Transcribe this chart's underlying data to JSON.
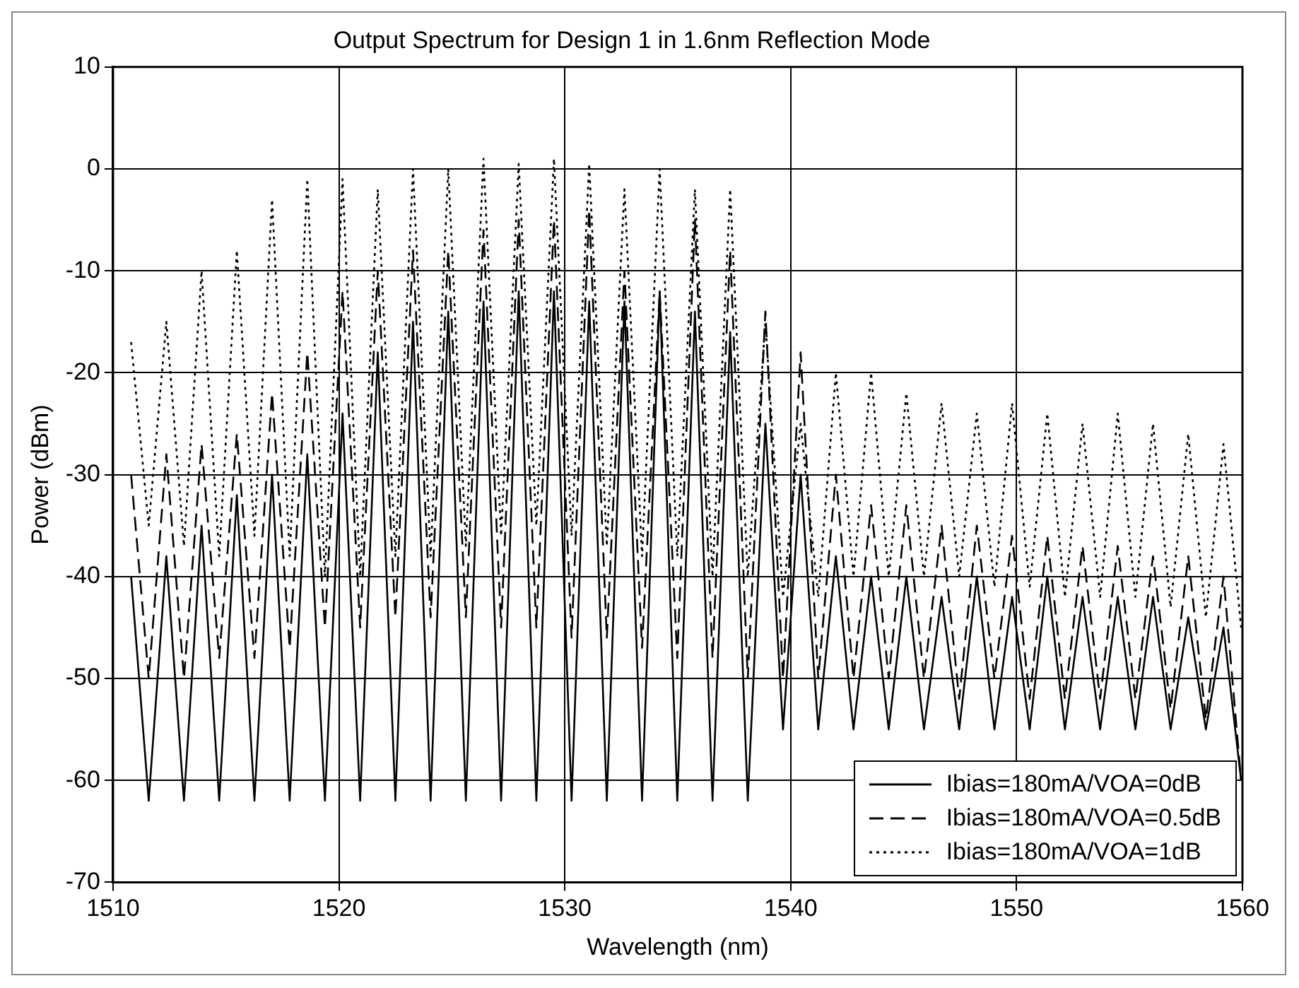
{
  "chart_data": {
    "type": "line",
    "title": "Output Spectrum for Design 1 in 1.6nm Reflection Mode",
    "xlabel": "Wavelength (nm)",
    "ylabel": "Power (dBm)",
    "x": [
      1510.8,
      1511.58,
      1512.36,
      1513.14,
      1513.92,
      1514.7,
      1515.48,
      1516.26,
      1517.04,
      1517.82,
      1518.6,
      1519.38,
      1520.16,
      1520.94,
      1521.72,
      1522.5,
      1523.28,
      1524.06,
      1524.84,
      1525.62,
      1526.4,
      1527.18,
      1527.96,
      1528.74,
      1529.52,
      1530.3,
      1531.08,
      1531.86,
      1532.64,
      1533.42,
      1534.2,
      1534.98,
      1535.76,
      1536.54,
      1537.32,
      1538.1,
      1538.88,
      1539.66,
      1540.44,
      1541.22,
      1542,
      1542.78,
      1543.56,
      1544.34,
      1545.12,
      1545.9,
      1546.68,
      1547.46,
      1548.24,
      1549.02,
      1549.8,
      1550.58,
      1551.36,
      1552.14,
      1552.92,
      1553.7,
      1554.48,
      1555.26,
      1556.04,
      1556.82,
      1557.6,
      1558.38,
      1559.16,
      1559.94
    ],
    "series": [
      {
        "name": "Ibias=180mA/VOA=0dB",
        "color": "#000000",
        "line_style": "solid",
        "values": [
          -40,
          -62,
          -38,
          -62,
          -35,
          -62,
          -32,
          -62,
          -30,
          -62,
          -28,
          -62,
          -24,
          -62,
          -18,
          -62,
          -15,
          -62,
          -14,
          -62,
          -13,
          -62,
          -12,
          -62,
          -12,
          -62,
          -13,
          -62,
          -13,
          -62,
          -12,
          -62,
          -14,
          -62,
          -16,
          -62,
          -25,
          -55,
          -30,
          -55,
          -38,
          -55,
          -40,
          -55,
          -40,
          -55,
          -42,
          -55,
          -40,
          -55,
          -42,
          -55,
          -40,
          -55,
          -42,
          -55,
          -42,
          -55,
          -42,
          -55,
          -44,
          -55,
          -45,
          -60
        ]
      },
      {
        "name": "Ibias=180mA/VOA=0.5dB",
        "color": "#000000",
        "line_style": "dashed",
        "values": [
          -30,
          -50,
          -28,
          -50,
          -27,
          -48,
          -26,
          -48,
          -22,
          -47,
          -18,
          -45,
          -12,
          -45,
          -10,
          -44,
          -8,
          -44,
          -8,
          -44,
          -6,
          -45,
          -5,
          -45,
          -5,
          -46,
          -4,
          -46,
          -10,
          -47,
          -12,
          -48,
          -5,
          -48,
          -8,
          -50,
          -14,
          -50,
          -18,
          -50,
          -30,
          -50,
          -33,
          -50,
          -33,
          -50,
          -35,
          -52,
          -35,
          -50,
          -36,
          -52,
          -36,
          -52,
          -37,
          -52,
          -37,
          -52,
          -38,
          -53,
          -38,
          -54,
          -40,
          -60
        ]
      },
      {
        "name": "Ibias=180mA/VOA=1dB",
        "color": "#000000",
        "line_style": "dotted",
        "values": [
          -17,
          -35,
          -15,
          -37,
          -10,
          -38,
          -8,
          -36,
          -3,
          -38,
          -1,
          -40,
          -1,
          -40,
          -2,
          -38,
          0,
          -38,
          0,
          -37,
          1,
          -36,
          0.5,
          -35,
          1,
          -36,
          0.5,
          -37,
          -2,
          -38,
          0,
          -38,
          -2,
          -40,
          -2,
          -40,
          -15,
          -42,
          -25,
          -42,
          -20,
          -40,
          -20,
          -40,
          -22,
          -40,
          -23,
          -40,
          -24,
          -41,
          -23,
          -41,
          -24,
          -42,
          -25,
          -42,
          -24,
          -42,
          -25,
          -43,
          -26,
          -44,
          -27,
          -45
        ]
      }
    ],
    "xlim": [
      1510,
      1560
    ],
    "xticks": [
      1510,
      1520,
      1530,
      1540,
      1550,
      1560
    ],
    "ylim": [
      -70,
      10
    ],
    "yticks": [
      -70,
      -60,
      -50,
      -40,
      -30,
      -20,
      -10,
      0,
      10
    ],
    "grid": true,
    "legend": "bottom right",
    "marker": "none"
  }
}
